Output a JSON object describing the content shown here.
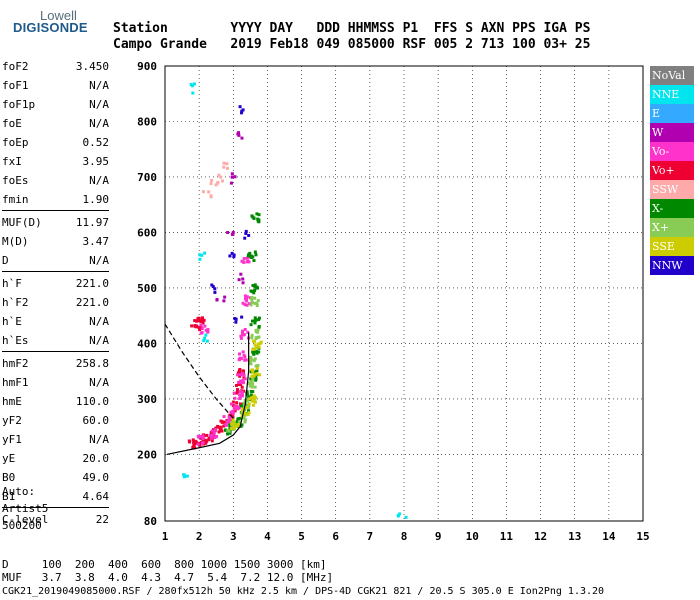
{
  "logo": {
    "top": "Lowell",
    "main": "DIGISONDE"
  },
  "header": {
    "line1": "Station        YYYY DAY   DDD HHMMSS P1  FFS S AXN PPS IGA PS",
    "line2": "Campo Grande   2019 Feb18 049 085000 RSF 005 2 713 100 03+ 25"
  },
  "params": [
    {
      "k": "foF2",
      "v": "3.450"
    },
    {
      "k": "foF1",
      "v": "N/A"
    },
    {
      "k": "foF1p",
      "v": "N/A"
    },
    {
      "k": "foE",
      "v": "N/A"
    },
    {
      "k": "foEp",
      "v": "0.52"
    },
    {
      "k": "fxI",
      "v": "3.95"
    },
    {
      "k": "foEs",
      "v": "N/A"
    },
    {
      "k": "fmin",
      "v": "1.90"
    },
    {
      "k": "MUF(D)",
      "v": "11.97"
    },
    {
      "k": "M(D)",
      "v": "3.47"
    },
    {
      "k": "D",
      "v": "N/A"
    },
    {
      "k": "h`F",
      "v": "221.0"
    },
    {
      "k": "h`F2",
      "v": "221.0"
    },
    {
      "k": "h`E",
      "v": "N/A"
    },
    {
      "k": "h`Es",
      "v": "N/A"
    },
    {
      "k": "hmF2",
      "v": "258.8"
    },
    {
      "k": "hmF1",
      "v": "N/A"
    },
    {
      "k": "hmE",
      "v": "110.0"
    },
    {
      "k": "yF2",
      "v": "60.0"
    },
    {
      "k": "yF1",
      "v": "N/A"
    },
    {
      "k": "yE",
      "v": "20.0"
    },
    {
      "k": "B0",
      "v": "49.0"
    },
    {
      "k": "B1",
      "v": "4.64"
    },
    {
      "k": "C-level",
      "v": "22"
    }
  ],
  "auto": {
    "line1": "Auto:",
    "line2": "Artist5",
    "line3": "500200"
  },
  "bottom": {
    "d_line": "D     100  200  400  600  800 1000 1500 3000 [km]",
    "muf_line": "MUF   3.7  3.8  4.0  4.3  4.7  5.4  7.2 12.0 [MHz]",
    "footer": "CGK21_2019049085000.RSF / 280fx512h 50 kHz 2.5 km / DPS-4D CGK21 821 / 20.5 S 305.0 E Ion2Png 1.3.20"
  },
  "legend": [
    {
      "label": "NoVal",
      "color": "#808080"
    },
    {
      "label": "NNE",
      "color": "#00e5ee"
    },
    {
      "label": "E",
      "color": "#33aaff"
    },
    {
      "label": "W",
      "color": "#b000b0"
    },
    {
      "label": "Vo-",
      "color": "#ff33cc"
    },
    {
      "label": "Vo+",
      "color": "#ee0033"
    },
    {
      "label": "SSW",
      "color": "#ffaaaa"
    },
    {
      "label": "X-",
      "color": "#008800"
    },
    {
      "label": "X+",
      "color": "#88cc55"
    },
    {
      "label": "SSE",
      "color": "#cccc00"
    },
    {
      "label": "NNW",
      "color": "#2200cc"
    }
  ],
  "chart_data": {
    "type": "scatter",
    "xlabel": "",
    "ylabel": "",
    "xlim": [
      1,
      15
    ],
    "ylim": [
      80,
      900
    ],
    "xticks": [
      1,
      2,
      3,
      4,
      5,
      6,
      7,
      8,
      9,
      10,
      11,
      12,
      13,
      14,
      15
    ],
    "yticks": [
      80,
      200,
      300,
      400,
      500,
      600,
      700,
      800,
      900
    ],
    "grid": true,
    "series": [
      {
        "name": "Vo+",
        "points": [
          [
            1.75,
            220
          ],
          [
            1.9,
            225
          ],
          [
            2.1,
            230
          ],
          [
            2.3,
            236
          ],
          [
            2.5,
            245
          ],
          [
            2.7,
            255
          ],
          [
            2.9,
            270
          ],
          [
            3.05,
            290
          ],
          [
            3.15,
            320
          ],
          [
            3.2,
            350
          ],
          [
            1.85,
            436
          ],
          [
            2.0,
            440
          ]
        ]
      },
      {
        "name": "Vo-",
        "points": [
          [
            2.0,
            228
          ],
          [
            2.4,
            240
          ],
          [
            2.8,
            262
          ],
          [
            3.0,
            285
          ],
          [
            3.1,
            310
          ],
          [
            3.2,
            340
          ],
          [
            3.25,
            380
          ],
          [
            3.3,
            420
          ],
          [
            3.35,
            480
          ],
          [
            3.3,
            550
          ],
          [
            2.1,
            430
          ]
        ]
      },
      {
        "name": "X-",
        "points": [
          [
            2.8,
            248
          ],
          [
            3.1,
            262
          ],
          [
            3.3,
            285
          ],
          [
            3.45,
            310
          ],
          [
            3.55,
            345
          ],
          [
            3.6,
            390
          ],
          [
            3.6,
            440
          ],
          [
            3.55,
            500
          ],
          [
            3.5,
            560
          ],
          [
            3.6,
            630
          ]
        ]
      },
      {
        "name": "X+",
        "points": [
          [
            2.9,
            252
          ],
          [
            3.2,
            270
          ],
          [
            3.4,
            295
          ],
          [
            3.5,
            330
          ],
          [
            3.58,
            370
          ],
          [
            3.62,
            420
          ],
          [
            3.6,
            480
          ]
        ]
      },
      {
        "name": "SSE",
        "points": [
          [
            3.0,
            258
          ],
          [
            3.3,
            280
          ],
          [
            3.5,
            300
          ],
          [
            3.62,
            350
          ],
          [
            3.65,
            400
          ]
        ]
      },
      {
        "name": "NNE",
        "points": [
          [
            1.7,
            862
          ],
          [
            1.5,
            170
          ],
          [
            2.1,
            410
          ],
          [
            2.0,
            560
          ],
          [
            7.9,
            87
          ]
        ]
      },
      {
        "name": "W",
        "points": [
          [
            3.1,
            780
          ],
          [
            3.0,
            700
          ],
          [
            2.9,
            600
          ],
          [
            3.2,
            520
          ],
          [
            2.6,
            480
          ]
        ]
      },
      {
        "name": "NNW",
        "points": [
          [
            3.2,
            823
          ],
          [
            3.3,
            600
          ],
          [
            2.4,
            500
          ],
          [
            2.9,
            560
          ],
          [
            3.1,
            450
          ]
        ]
      },
      {
        "name": "SSW",
        "points": [
          [
            2.2,
            670
          ],
          [
            2.4,
            690
          ],
          [
            2.6,
            700
          ],
          [
            2.8,
            720
          ]
        ]
      }
    ],
    "profile_curve": [
      [
        1.05,
        200
      ],
      [
        2.0,
        212
      ],
      [
        2.6,
        220
      ],
      [
        3.0,
        235
      ],
      [
        3.2,
        250
      ],
      [
        3.35,
        290
      ],
      [
        3.45,
        350
      ],
      [
        3.45,
        420
      ]
    ],
    "dashed_curve": [
      [
        1.0,
        435
      ],
      [
        1.5,
        385
      ],
      [
        2.0,
        340
      ],
      [
        2.5,
        300
      ],
      [
        3.0,
        265
      ]
    ]
  }
}
